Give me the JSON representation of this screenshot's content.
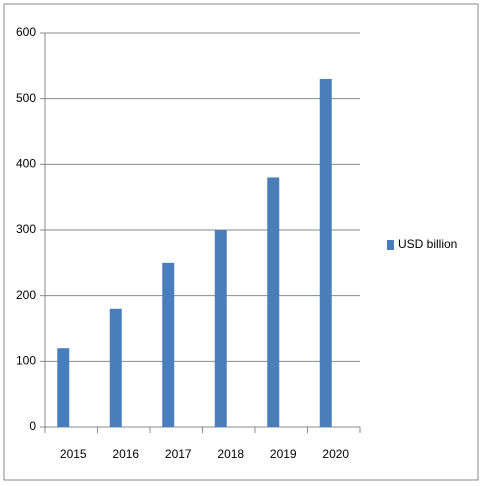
{
  "chart_data": {
    "type": "bar",
    "categories": [
      "2015",
      "2016",
      "2017",
      "2018",
      "2019",
      "2020"
    ],
    "series": [
      {
        "name": "USD billion",
        "color": "#4a7ebb",
        "values": [
          120,
          180,
          250,
          300,
          380,
          530
        ]
      }
    ],
    "ylim": [
      0,
      600
    ],
    "yticks": [
      0,
      100,
      200,
      300,
      400,
      500,
      600
    ],
    "grid": true,
    "legend": "right"
  }
}
